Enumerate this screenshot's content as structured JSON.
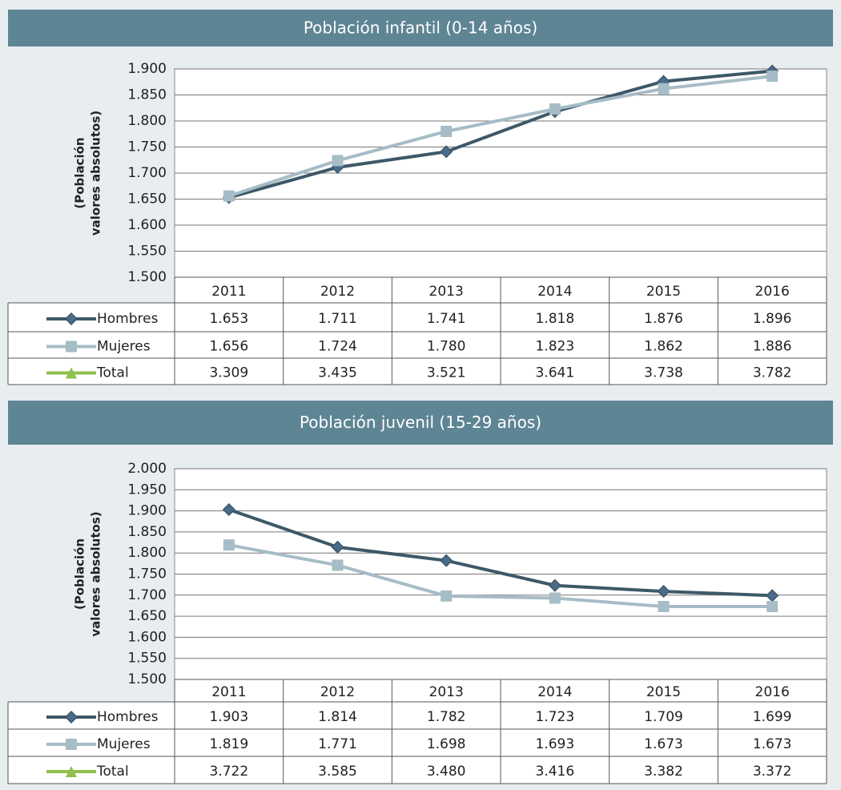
{
  "chart_data": [
    {
      "type": "line",
      "title": "Población infantil (0-14 años)",
      "ylabel": [
        "(Población",
        "valores absolutos)"
      ],
      "categories": [
        "2011",
        "2012",
        "2013",
        "2014",
        "2015",
        "2016"
      ],
      "series": [
        {
          "name": "Hombres",
          "color": "#3e5868",
          "marker": "diamond",
          "values": [
            1653,
            1711,
            1741,
            1818,
            1876,
            1896
          ],
          "value_labels": [
            "1.653",
            "1.711",
            "1.741",
            "1.818",
            "1.876",
            "1.896"
          ]
        },
        {
          "name": "Mujeres",
          "color": "#a6bcc6",
          "marker": "square",
          "values": [
            1656,
            1724,
            1780,
            1823,
            1862,
            1886
          ],
          "value_labels": [
            "1.656",
            "1.724",
            "1.780",
            "1.823",
            "1.862",
            "1.886"
          ]
        },
        {
          "name": "Total",
          "color": "#8fbf4d",
          "marker": "triangle",
          "values": [
            3309,
            3435,
            3521,
            3641,
            3738,
            3782
          ],
          "value_labels": [
            "3.309",
            "3.435",
            "3.521",
            "3.641",
            "3.738",
            "3.782"
          ]
        }
      ],
      "ylim": [
        1500,
        1900
      ],
      "yticks": [
        {
          "value": 1500,
          "label": "1.500"
        },
        {
          "value": 1550,
          "label": "1.550"
        },
        {
          "value": 1600,
          "label": "1.600"
        },
        {
          "value": 1650,
          "label": "1.650"
        },
        {
          "value": 1700,
          "label": "1.700"
        },
        {
          "value": 1750,
          "label": "1.750"
        },
        {
          "value": 1800,
          "label": "1.800"
        },
        {
          "value": 1850,
          "label": "1.850"
        },
        {
          "value": 1900,
          "label": "1.900"
        }
      ],
      "grid": true
    },
    {
      "type": "line",
      "title": "Población juvenil (15-29 años)",
      "ylabel": [
        "(Población",
        "valores absolutos)"
      ],
      "categories": [
        "2011",
        "2012",
        "2013",
        "2014",
        "2015",
        "2016"
      ],
      "series": [
        {
          "name": "Hombres",
          "color": "#3e5868",
          "marker": "diamond",
          "values": [
            1903,
            1814,
            1782,
            1723,
            1709,
            1699
          ],
          "value_labels": [
            "1.903",
            "1.814",
            "1.782",
            "1.723",
            "1.709",
            "1.699"
          ]
        },
        {
          "name": "Mujeres",
          "color": "#a6bcc6",
          "marker": "square",
          "values": [
            1819,
            1771,
            1698,
            1693,
            1673,
            1673
          ],
          "value_labels": [
            "1.819",
            "1.771",
            "1.698",
            "1.693",
            "1.673",
            "1.673"
          ]
        },
        {
          "name": "Total",
          "color": "#8fbf4d",
          "marker": "triangle",
          "values": [
            3722,
            3585,
            3480,
            3416,
            3382,
            3372
          ],
          "value_labels": [
            "3.722",
            "3.585",
            "3.480",
            "3.416",
            "3.382",
            "3.372"
          ]
        }
      ],
      "ylim": [
        1500,
        2000
      ],
      "yticks": [
        {
          "value": 1500,
          "label": "1.500"
        },
        {
          "value": 1550,
          "label": "1.550"
        },
        {
          "value": 1600,
          "label": "1.600"
        },
        {
          "value": 1650,
          "label": "1.650"
        },
        {
          "value": 1700,
          "label": "1.700"
        },
        {
          "value": 1750,
          "label": "1.750"
        },
        {
          "value": 1800,
          "label": "1.800"
        },
        {
          "value": 1850,
          "label": "1.850"
        },
        {
          "value": 1900,
          "label": "1.900"
        },
        {
          "value": 1950,
          "label": "1.950"
        },
        {
          "value": 2000,
          "label": "2.000"
        }
      ],
      "grid": true
    }
  ]
}
